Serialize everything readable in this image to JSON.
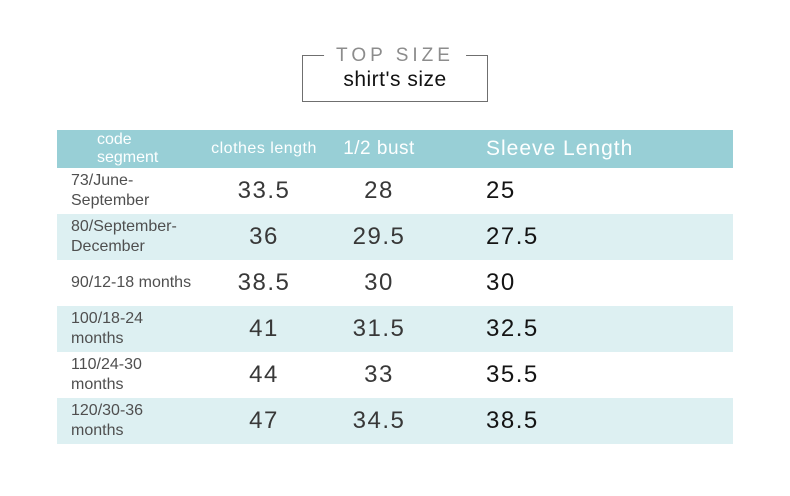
{
  "title": {
    "eyebrow": "TOP SIZE",
    "name": "shirt's size"
  },
  "table": {
    "columns": [
      "code segment",
      "clothes length",
      "1/2 bust",
      "Sleeve Length"
    ],
    "rows": [
      {
        "label": "73/June-September",
        "values": [
          "33.5",
          "28",
          "25"
        ]
      },
      {
        "label": "80/September-December",
        "values": [
          "36",
          "29.5",
          "27.5"
        ]
      },
      {
        "label": "90/12-18 months",
        "values": [
          "38.5",
          "30",
          "30"
        ]
      },
      {
        "label": "100/18-24 months",
        "values": [
          "41",
          "31.5",
          "32.5"
        ]
      },
      {
        "label": "110/24-30 months",
        "values": [
          "44",
          "33",
          "35.5"
        ]
      },
      {
        "label": "120/30-36 months",
        "values": [
          "47",
          "34.5",
          "38.5"
        ]
      }
    ]
  },
  "colors": {
    "header_bg": "#98cfd6",
    "row_alt_bg": "#ddf0f2",
    "header_text": "#fdffff",
    "box_border": "#6f6f6f",
    "eyebrow_text": "#8c8c8c",
    "value_text": "#383838",
    "sleeve_value_text": "#141414",
    "label_text": "#4f4f4f"
  }
}
